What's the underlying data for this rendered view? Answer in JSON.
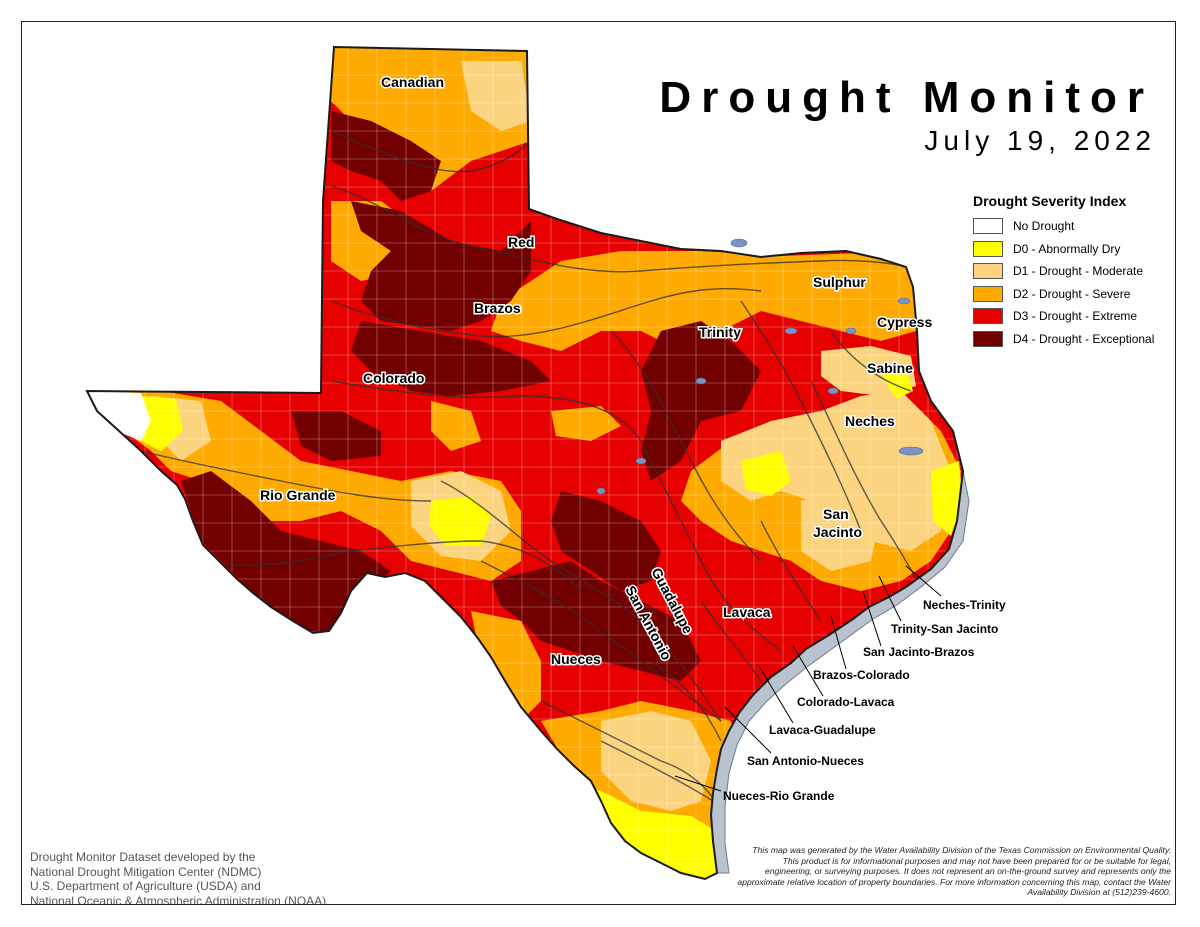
{
  "title": "Drought Monitor",
  "date": "July 19, 2022",
  "legend": {
    "title": "Drought Severity Index",
    "items": [
      {
        "label": "No Drought",
        "color": "#ffffff"
      },
      {
        "label": "D0 - Abnormally Dry",
        "color": "#ffff00"
      },
      {
        "label": "D1 - Drought - Moderate",
        "color": "#fcd37f"
      },
      {
        "label": "D2 - Drought - Severe",
        "color": "#ffaa00"
      },
      {
        "label": "D3 - Drought - Extreme",
        "color": "#e60000"
      },
      {
        "label": "D4 - Drought - Exceptional",
        "color": "#730000"
      }
    ]
  },
  "basins": {
    "canadian": "Canadian",
    "red": "Red",
    "brazos": "Brazos",
    "colorado": "Colorado",
    "rio_grande": "Rio Grande",
    "sulphur": "Sulphur",
    "cypress": "Cypress",
    "trinity": "Trinity",
    "sabine": "Sabine",
    "neches": "Neches",
    "san_jacinto_1": "San",
    "san_jacinto_2": "Jacinto",
    "guadalupe": "Guadalupe",
    "san_antonio": "San Antonio",
    "lavaca": "Lavaca",
    "nueces": "Nueces"
  },
  "coastal_basins": {
    "neches_trinity": "Neches-Trinity",
    "trinity_san_jacinto": "Trinity-San Jacinto",
    "san_jacinto_brazos": "San Jacinto-Brazos",
    "brazos_colorado": "Brazos-Colorado",
    "colorado_lavaca": "Colorado-Lavaca",
    "lavaca_guadalupe": "Lavaca-Guadalupe",
    "san_antonio_nueces": "San Antonio-Nueces",
    "nueces_rio_grande": "Nueces-Rio Grande"
  },
  "credit": {
    "line1": "Drought Monitor Dataset developed by the",
    "line2": "National Drought Mitigation Center (NDMC)",
    "line3": "U.S. Department of Agriculture (USDA) and",
    "line4": "National Oceanic & Atmospheric Administration (NOAA)"
  },
  "disclaimer": "This map was generated by the Water Availability Division of the Texas Commission on Environmental Quality. This product is for informational purposes and may not have been prepared for or be suitable for legal, engineering, or surveying purposes. It does not represent an on-the-ground survey and represents only the approximate relative location of property boundaries. For more information concerning this map, contact the Water Availability Division at (512)239-4600."
}
